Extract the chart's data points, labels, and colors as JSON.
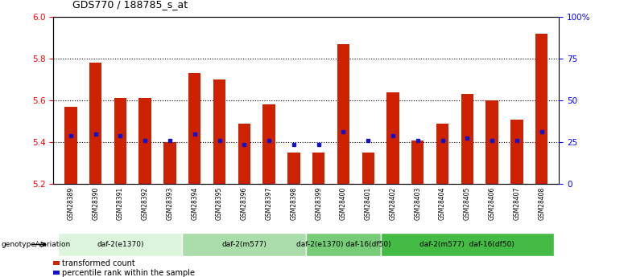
{
  "title": "GDS770 / 188785_s_at",
  "samples": [
    "GSM28389",
    "GSM28390",
    "GSM28391",
    "GSM28392",
    "GSM28393",
    "GSM28394",
    "GSM28395",
    "GSM28396",
    "GSM28397",
    "GSM28398",
    "GSM28399",
    "GSM28400",
    "GSM28401",
    "GSM28402",
    "GSM28403",
    "GSM28404",
    "GSM28405",
    "GSM28406",
    "GSM28407",
    "GSM28408"
  ],
  "bar_values": [
    5.57,
    5.78,
    5.61,
    5.61,
    5.4,
    5.73,
    5.7,
    5.49,
    5.58,
    5.35,
    5.35,
    5.87,
    5.35,
    5.64,
    5.41,
    5.49,
    5.63,
    5.6,
    5.51,
    5.92
  ],
  "dot_values": [
    5.43,
    5.44,
    5.43,
    5.41,
    5.41,
    5.44,
    5.41,
    5.39,
    5.41,
    5.39,
    5.39,
    5.45,
    5.41,
    5.43,
    5.41,
    5.41,
    5.42,
    5.41,
    5.41,
    5.45
  ],
  "ylim": [
    5.2,
    6.0
  ],
  "y2lim": [
    0,
    100
  ],
  "yticks": [
    5.2,
    5.4,
    5.6,
    5.8,
    6.0
  ],
  "y2ticks": [
    0,
    25,
    50,
    75,
    100
  ],
  "y2ticklabels": [
    "0",
    "25",
    "50",
    "75",
    "100%"
  ],
  "bar_color": "#cc2200",
  "dot_color": "#1111cc",
  "bg_color": "#ffffff",
  "bar_bottom": 5.2,
  "groups": [
    {
      "label": "daf-2(e1370)",
      "start": 0,
      "end": 4,
      "color": "#ddf5dd"
    },
    {
      "label": "daf-2(m577)",
      "start": 5,
      "end": 9,
      "color": "#aaddaa"
    },
    {
      "label": "daf-2(e1370) daf-16(df50)",
      "start": 10,
      "end": 12,
      "color": "#77cc77"
    },
    {
      "label": "daf-2(m577)  daf-16(df50)",
      "start": 13,
      "end": 19,
      "color": "#44bb44"
    }
  ],
  "legend_items": [
    {
      "color": "#cc2200",
      "label": "transformed count"
    },
    {
      "color": "#1111cc",
      "label": "percentile rank within the sample"
    }
  ],
  "genotype_label": "genotype/variation"
}
